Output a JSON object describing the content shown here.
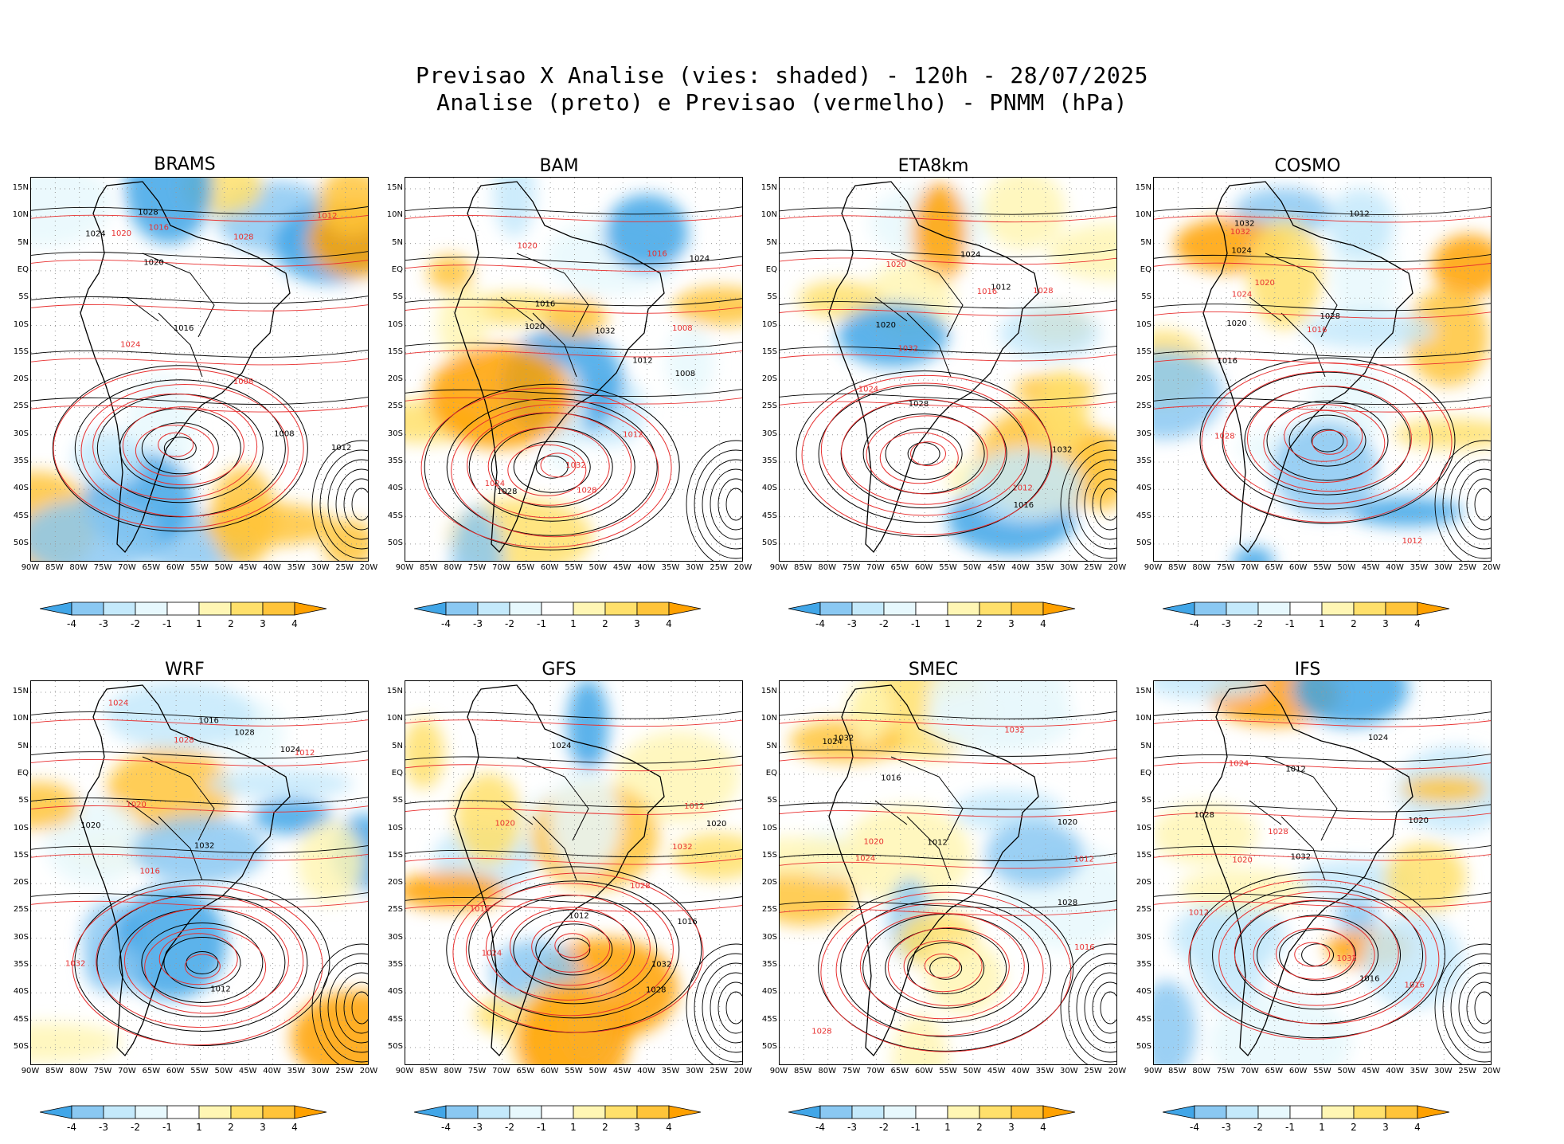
{
  "header": {
    "line1": "Previsao X Analise (vies: shaded) - 120h - 28/07/2025",
    "line2": "Analise (preto) e Previsao (vermelho) - PNMM (hPa)"
  },
  "axes": {
    "lat_labels": [
      "15N",
      "10N",
      "5N",
      "EQ",
      "5S",
      "10S",
      "15S",
      "20S",
      "25S",
      "30S",
      "35S",
      "40S",
      "45S",
      "50S"
    ],
    "lon_labels": [
      "90W",
      "85W",
      "80W",
      "75W",
      "70W",
      "65W",
      "60W",
      "55W",
      "50W",
      "45W",
      "40W",
      "35W",
      "30W",
      "25W",
      "20W"
    ]
  },
  "colorbar": {
    "labels": [
      "-4",
      "-3",
      "-2",
      "-1",
      "1",
      "2",
      "3",
      "4"
    ],
    "colors": [
      "#41a6e8",
      "#8ac8f2",
      "#c4e9fb",
      "#e7f8fd",
      "#ffffff",
      "#fff6b4",
      "#ffe06b",
      "#ffc43a",
      "#ffa100"
    ]
  },
  "contour_colors": {
    "analysis": "#000000",
    "forecast": "#e83030"
  },
  "panels": [
    {
      "name": "BRAMS",
      "labels": [
        "1008",
        "1012",
        "1016",
        "1020",
        "1024",
        "1028"
      ]
    },
    {
      "name": "BAM",
      "labels": [
        "1012",
        "1016",
        "1020",
        "1024",
        "1028",
        "1032",
        "1008"
      ]
    },
    {
      "name": "ETA8km",
      "labels": [
        "1012",
        "1016",
        "1020",
        "1024",
        "1028",
        "1032"
      ]
    },
    {
      "name": "COSMO",
      "labels": [
        "1012",
        "1016",
        "1020",
        "1024",
        "1028",
        "1032"
      ]
    },
    {
      "name": "WRF",
      "labels": [
        "1012",
        "1016",
        "1020",
        "1024",
        "1028",
        "1032"
      ]
    },
    {
      "name": "GFS",
      "labels": [
        "1012",
        "1016",
        "1020",
        "1024",
        "1028",
        "1032"
      ]
    },
    {
      "name": "SMEC",
      "labels": [
        "1012",
        "1016",
        "1020",
        "1024",
        "1028",
        "1032"
      ]
    },
    {
      "name": "IFS",
      "labels": [
        "1012",
        "1016",
        "1020",
        "1024",
        "1028",
        "1032"
      ]
    }
  ]
}
